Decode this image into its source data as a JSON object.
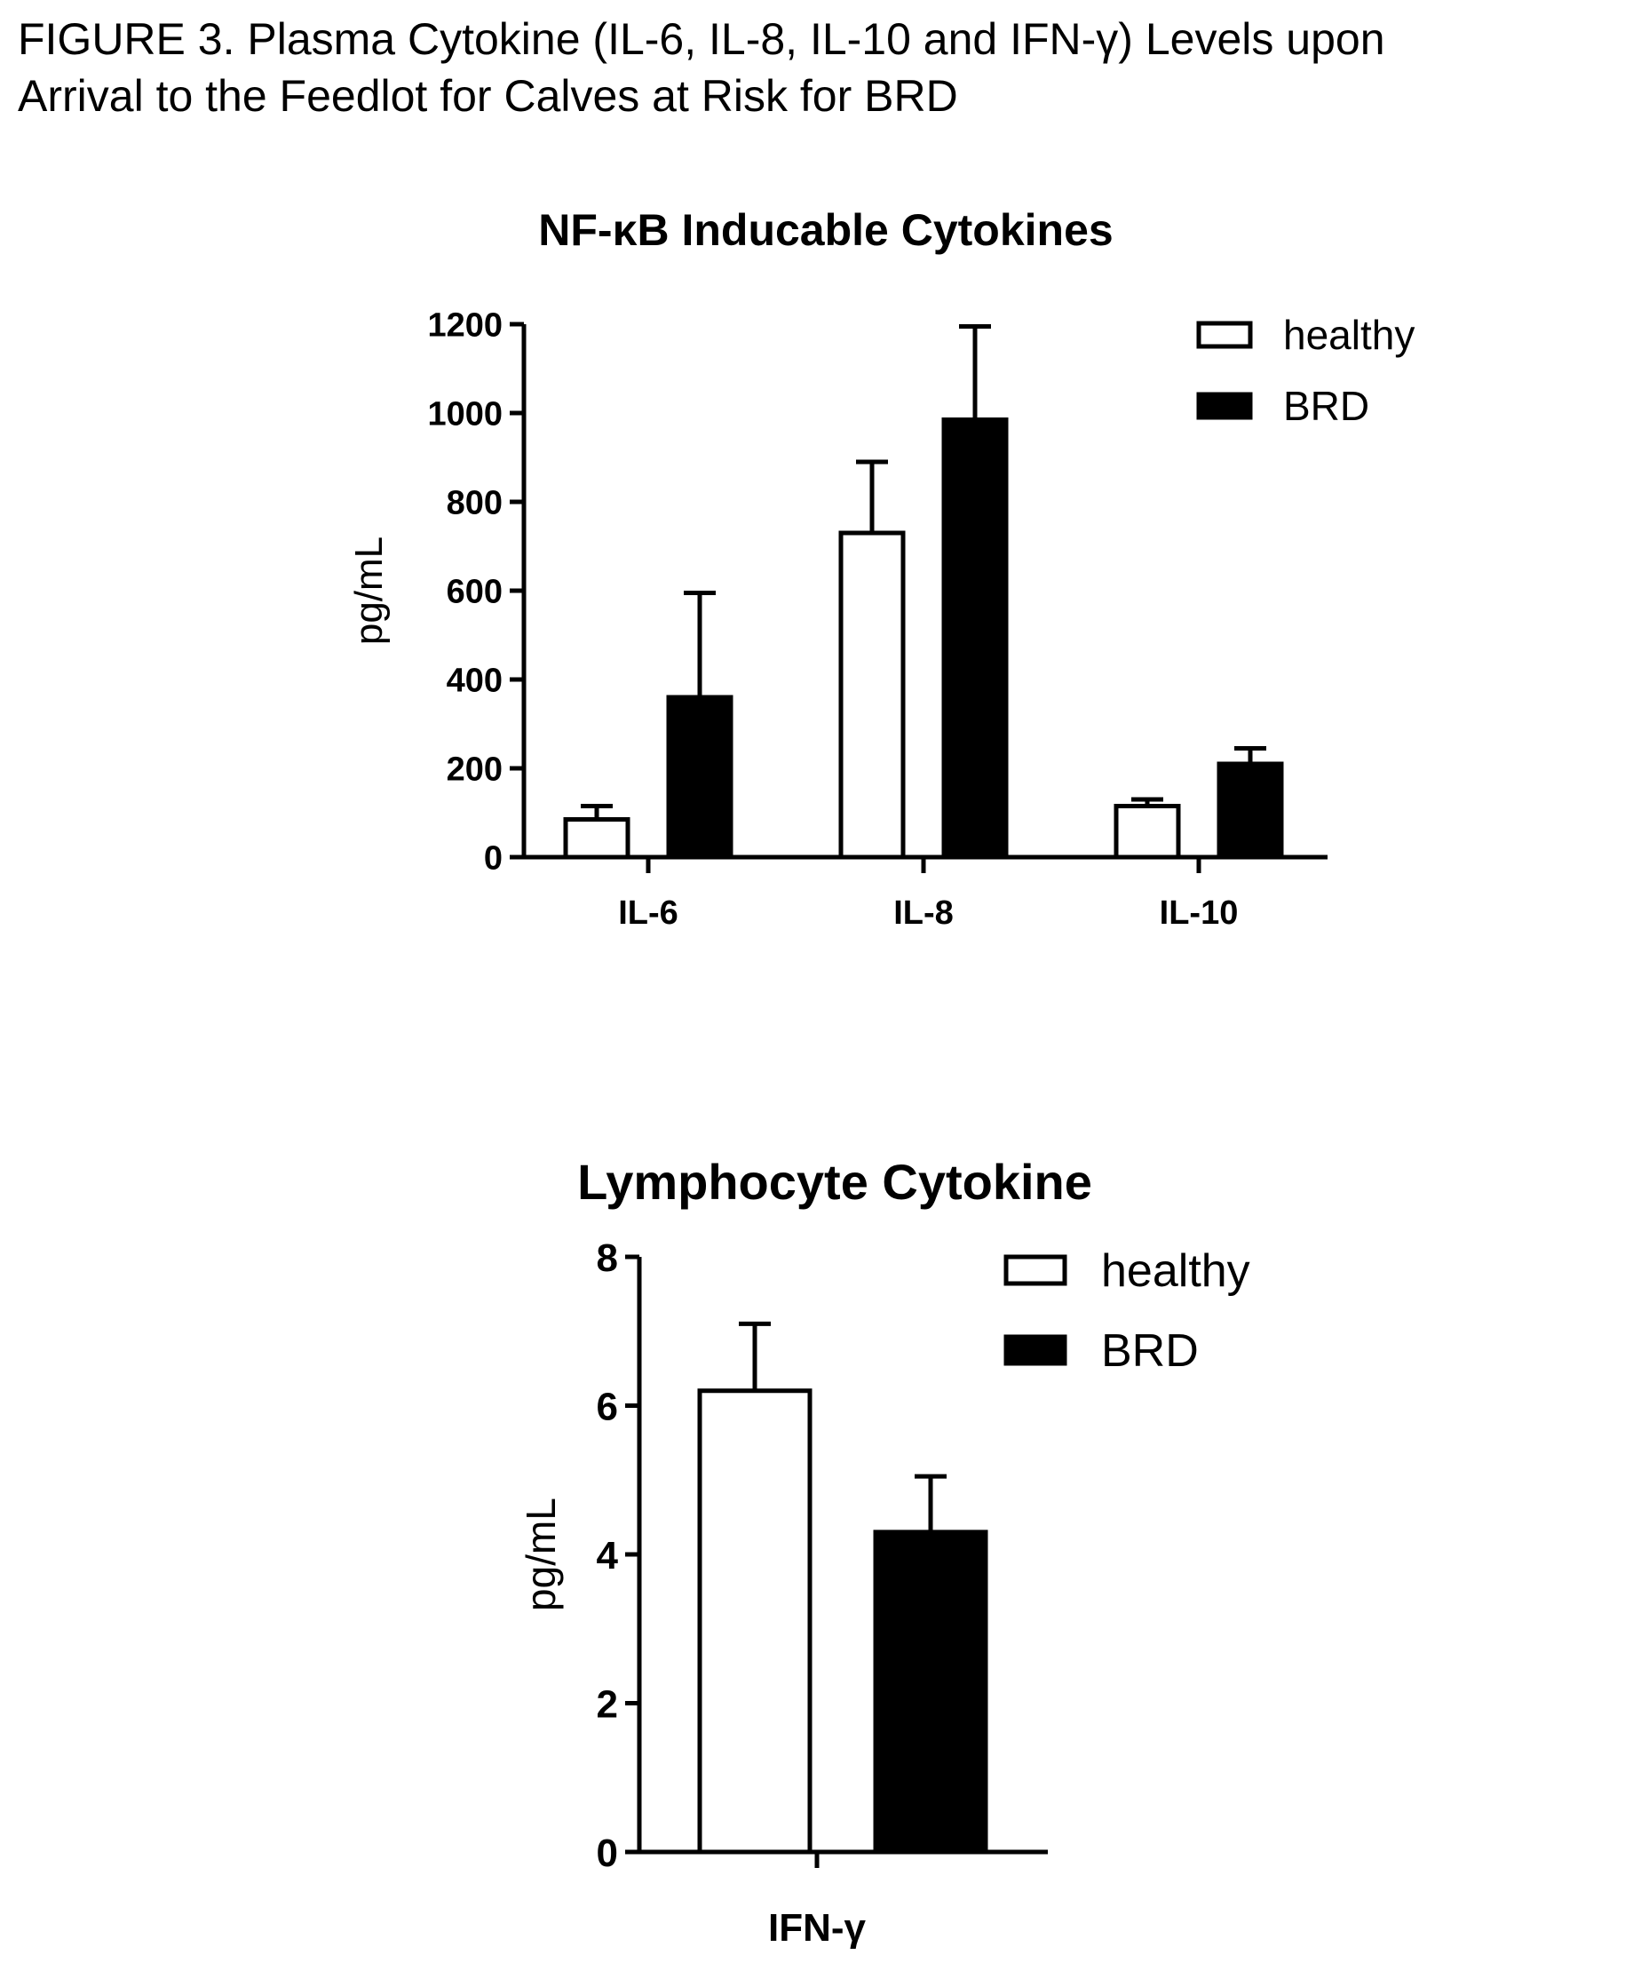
{
  "figure": {
    "caption_line1": "FIGURE 3.  Plasma Cytokine (IL-6, IL-8, IL-10 and IFN-γ) Levels upon",
    "caption_line2": "Arrival to the Feedlot for Calves at Risk for BRD"
  },
  "chart_data": [
    {
      "type": "bar",
      "title": "NF-κB Inducable Cytokines",
      "xlabel": "",
      "ylabel": "pg/mL",
      "ylim": [
        0,
        1200
      ],
      "yticks": [
        0,
        200,
        400,
        600,
        800,
        1000,
        1200
      ],
      "categories": [
        "IL-6",
        "IL-8",
        "IL-10"
      ],
      "series": [
        {
          "name": "healthy",
          "values": [
            85,
            730,
            115
          ],
          "error": [
            30,
            160,
            15
          ],
          "fill": "#ffffff"
        },
        {
          "name": "BRD",
          "values": [
            360,
            985,
            210
          ],
          "error": [
            235,
            210,
            35
          ],
          "fill": "#000000"
        }
      ],
      "legend_position": "top-right",
      "grid": false
    },
    {
      "type": "bar",
      "title": "Lymphocyte Cytokine",
      "xlabel": "",
      "ylabel": "pg/mL",
      "ylim": [
        0,
        8
      ],
      "yticks": [
        0,
        2,
        4,
        6,
        8
      ],
      "categories": [
        "IFN-γ"
      ],
      "series": [
        {
          "name": "healthy",
          "values": [
            6.2
          ],
          "error": [
            0.9
          ],
          "fill": "#ffffff"
        },
        {
          "name": "BRD",
          "values": [
            4.3
          ],
          "error": [
            0.75
          ],
          "fill": "#000000"
        }
      ],
      "legend_position": "top-right",
      "grid": false
    }
  ]
}
